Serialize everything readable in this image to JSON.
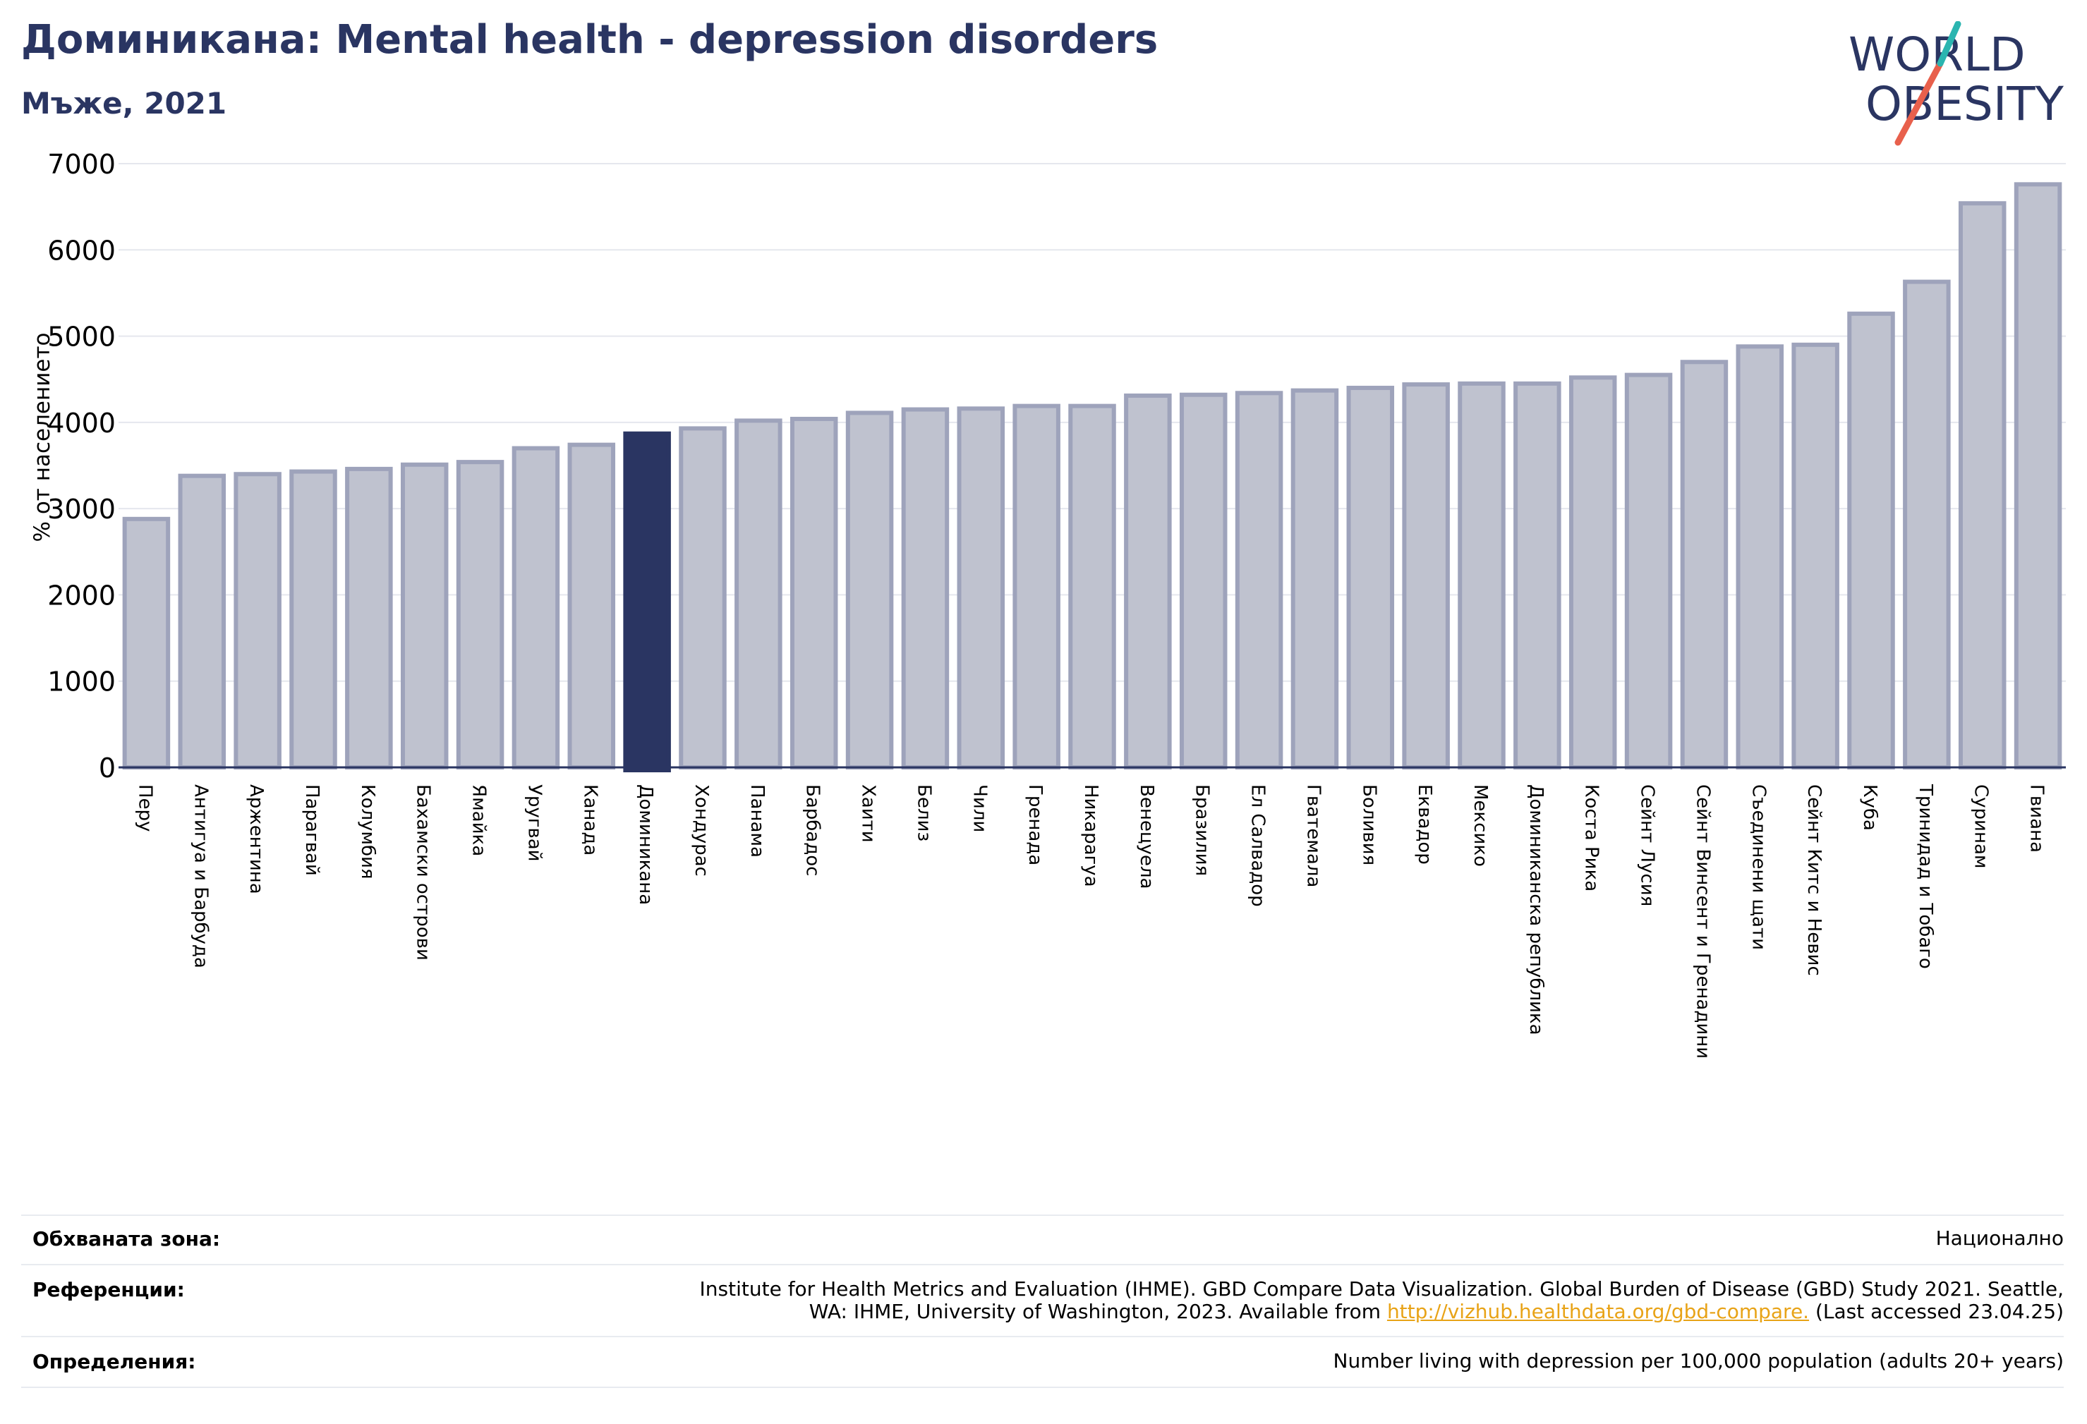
{
  "title": "Доминикана: Mental health - depression disorders",
  "subtitle": "Мъже, 2021",
  "logo": {
    "line1": "WORLD",
    "line2": "OBESITY"
  },
  "colors": {
    "bar": "#bfc2cf",
    "bar_stroke": "#9ea3bb",
    "highlight": "#2a3562",
    "title": "#2a3562",
    "grid": "#e5e7ee",
    "link": "#e8a317"
  },
  "chart_data": {
    "type": "bar",
    "ylabel": "% от населението",
    "ylim": [
      0,
      7000
    ],
    "yticks": [
      0,
      1000,
      2000,
      3000,
      4000,
      5000,
      6000,
      7000
    ],
    "grid": true,
    "highlight": "Доминикана",
    "categories": [
      "Перу",
      "Антигуа и Барбуда",
      "Аржентина",
      "Парагвай",
      "Колумбия",
      "Бахамски острови",
      "Ямайка",
      "Уругвай",
      "Канада",
      "Доминикана",
      "Хондурас",
      "Панама",
      "Барбадос",
      "Хаити",
      "Белиз",
      "Чили",
      "Гренада",
      "Никарагуа",
      "Венецуела",
      "Бразилия",
      "Ел Салвадор",
      "Гватемала",
      "Боливия",
      "Еквадор",
      "Мексико",
      "Доминиканска република",
      "Коста Рика",
      "Сейнт Лусия",
      "Сейнт Винсент и Гренадини",
      "Съединени щати",
      "Сейнт Китс и Невис",
      "Куба",
      "Тринидад и Тобаго",
      "Суринам",
      "Гвиана"
    ],
    "values": [
      2880,
      3380,
      3400,
      3430,
      3460,
      3510,
      3540,
      3700,
      3740,
      3870,
      3930,
      4020,
      4040,
      4110,
      4150,
      4160,
      4190,
      4190,
      4310,
      4320,
      4340,
      4370,
      4400,
      4440,
      4450,
      4450,
      4520,
      4550,
      4700,
      4880,
      4900,
      5260,
      5630,
      6540,
      6760
    ]
  },
  "info": {
    "coverage_label": "Обхваната зона:",
    "coverage_value": "Национално",
    "references_label": "Референции:",
    "references_line1": "Institute for Health Metrics and Evaluation (IHME). GBD Compare Data Visualization. Global Burden of Disease (GBD) Study 2021. Seattle,",
    "references_line2_pre": "WA: IHME, University of Washington, 2023. Available from ",
    "references_link": "http://vizhub.healthdata.org/gbd-compare.",
    "references_line2_post": " (Last accessed 23.04.25)",
    "definitions_label": "Определения:",
    "definitions_value": "Number living with depression per 100,000 population (adults 20+ years)"
  }
}
